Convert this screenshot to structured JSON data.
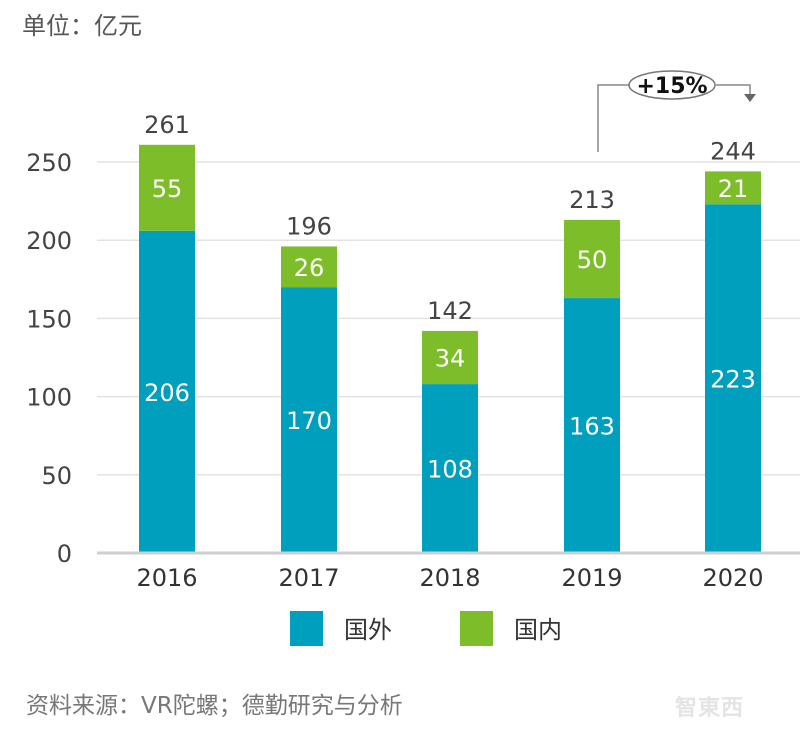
{
  "chart_data": {
    "type": "bar",
    "stacked": true,
    "unit_label": "单位：亿元",
    "categories": [
      "2016",
      "2017",
      "2018",
      "2019",
      "2020"
    ],
    "series": [
      {
        "name": "国外",
        "values": [
          206,
          170,
          108,
          163,
          223
        ],
        "color": "#009fbd"
      },
      {
        "name": "国内",
        "values": [
          55,
          26,
          34,
          50,
          21
        ],
        "color": "#7dbd2a"
      }
    ],
    "totals": [
      261,
      196,
      142,
      213,
      244
    ],
    "ylim": [
      0,
      250
    ],
    "yticks": [
      0,
      50,
      100,
      150,
      200,
      250
    ],
    "grid": true,
    "legend": "bottom",
    "annotation": {
      "text": "+15%",
      "from": "2019",
      "to": "2020"
    },
    "source": "资料来源：VR陀螺；德勤研究与分析"
  },
  "watermark": "智东西"
}
